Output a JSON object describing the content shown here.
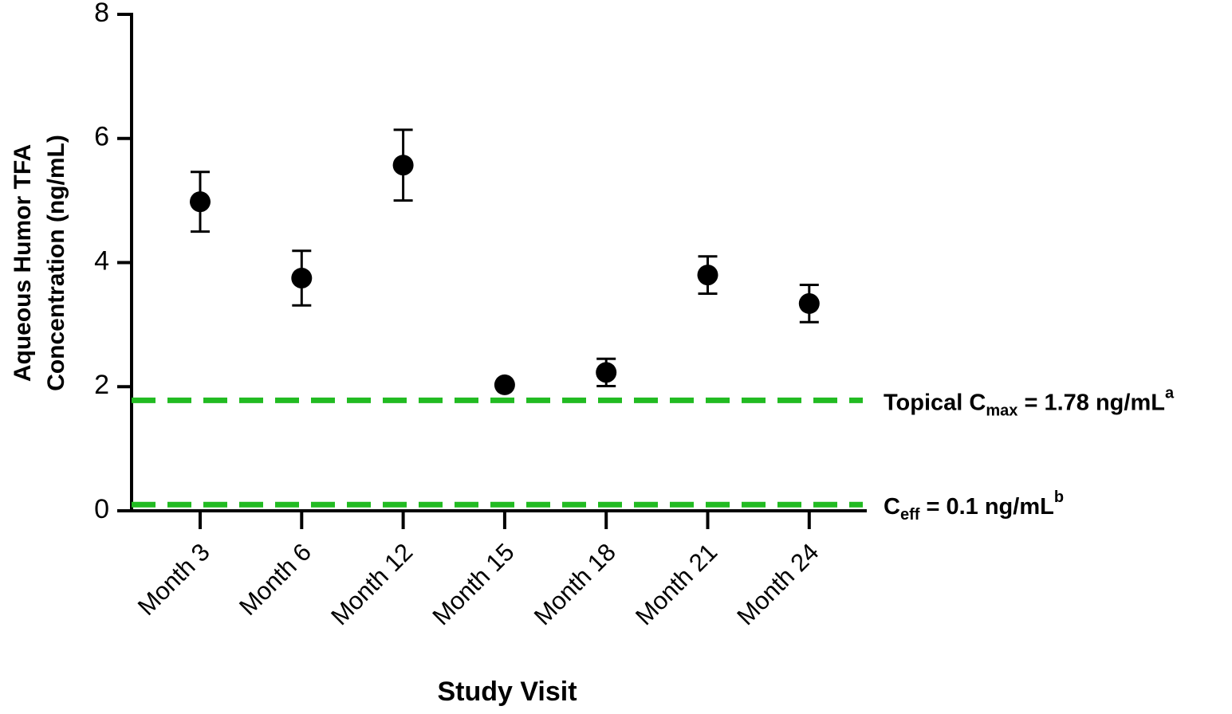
{
  "chart_data": {
    "type": "errorbar",
    "y_label_lines": [
      "Aqueous Humor TFA",
      "Concentration (ng/mL)"
    ],
    "x_label": "Study Visit",
    "categories": [
      "Month 3",
      "Month 6",
      "Month 12",
      "Month 15",
      "Month 18",
      "Month 21",
      "Month 24"
    ],
    "values": [
      4.98,
      3.75,
      5.57,
      2.03,
      2.23,
      3.8,
      3.34
    ],
    "errors": [
      0.48,
      0.44,
      0.57,
      null,
      0.22,
      0.3,
      0.3
    ],
    "color": "#000000",
    "ylim": [
      0,
      8
    ],
    "yticks": [
      0,
      2,
      4,
      6,
      8
    ],
    "reference_lines": [
      {
        "value": 1.78,
        "color": "#22bb22",
        "label": {
          "text": "Topical C",
          "sub": "max",
          "rest": " = 1.78 ng/mL",
          "sup": "a"
        }
      },
      {
        "value": 0.1,
        "color": "#22bb22",
        "label": {
          "text": "C",
          "sub": "eff",
          "rest": " = 0.1 ng/mL",
          "sup": "b"
        }
      }
    ]
  }
}
